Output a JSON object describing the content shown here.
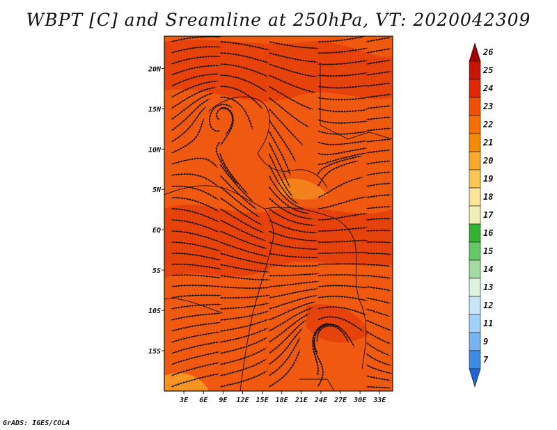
{
  "title": "WBPT [C] and Sreamline at 250hPa, VT: 2020042309",
  "credit": "GrADS: IGES/COLA",
  "map": {
    "lon_range": [
      0,
      35
    ],
    "lat_range": [
      -20,
      24
    ],
    "lat_ticks": [
      {
        "value": 20,
        "label": "20N"
      },
      {
        "value": 15,
        "label": "15N"
      },
      {
        "value": 10,
        "label": "10N"
      },
      {
        "value": 5,
        "label": "5N"
      },
      {
        "value": 0,
        "label": "EQ"
      },
      {
        "value": -5,
        "label": "5S"
      },
      {
        "value": -10,
        "label": "10S"
      },
      {
        "value": -15,
        "label": "15S"
      }
    ],
    "lon_ticks": [
      {
        "value": 3,
        "label": "3E"
      },
      {
        "value": 6,
        "label": "6E"
      },
      {
        "value": 9,
        "label": "9E"
      },
      {
        "value": 12,
        "label": "12E"
      },
      {
        "value": 15,
        "label": "15E"
      },
      {
        "value": 18,
        "label": "18E"
      },
      {
        "value": 21,
        "label": "21E"
      },
      {
        "value": 24,
        "label": "24E"
      },
      {
        "value": 27,
        "label": "27E"
      },
      {
        "value": 30,
        "label": "30E"
      },
      {
        "value": 33,
        "label": "33E"
      }
    ],
    "field_color": "#f05a10",
    "field_dark_color": "#e3400a",
    "field_light_color": "#f58a1e"
  },
  "colorbar": {
    "levels": [
      "26",
      "25",
      "24",
      "23",
      "22",
      "21",
      "20",
      "19",
      "18",
      "17",
      "16",
      "15",
      "14",
      "13",
      "12",
      "11",
      "9",
      "7"
    ],
    "colors": [
      "#a50000",
      "#c81400",
      "#e12800",
      "#f05000",
      "#f56e00",
      "#f58c00",
      "#faaa28",
      "#fac850",
      "#fae696",
      "#f0f0b4",
      "#32b432",
      "#64c864",
      "#a0dca0",
      "#dcf5dc",
      "#c8e6fa",
      "#a0d2fa",
      "#78b4f0",
      "#3c8ce6",
      "#1e64d2"
    ]
  }
}
